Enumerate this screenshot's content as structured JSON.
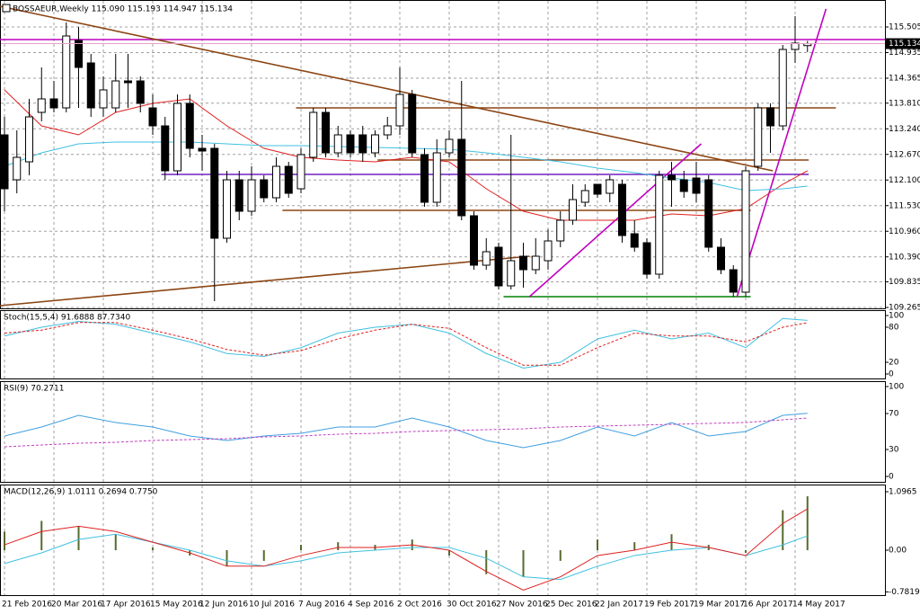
{
  "chart_data": [
    {
      "type": "candlestick",
      "title": "BOSSAEUR,Weekly  115.090 115.193 114.947 115.134",
      "grid": true,
      "categories": [
        "21 Feb 2016",
        null,
        null,
        null,
        "20 Mar 2016",
        null,
        null,
        null,
        "17 Apr 2016",
        null,
        null,
        null,
        "15 May 2016",
        null,
        null,
        null,
        "12 Jun 2016",
        null,
        null,
        null,
        "10 Jul 2016",
        null,
        null,
        null,
        "7 Aug 2016",
        null,
        null,
        null,
        "4 Sep 2016",
        null,
        null,
        null,
        "2 Oct 2016",
        null,
        null,
        null,
        "30 Oct 2016",
        null,
        null,
        null,
        "27 Nov 2016",
        null,
        null,
        null,
        "25 Dec 2016",
        null,
        null,
        null,
        "22 Jan 2017",
        null,
        null,
        null,
        "19 Feb 2017",
        null,
        null,
        null,
        "19 Mar 2017",
        null,
        null,
        null,
        "16 Apr 2017",
        null,
        null,
        null,
        "14 May 2017",
        null
      ],
      "open": [
        113.105,
        112.105,
        112.505,
        113.605,
        113.905,
        113.705,
        115.205,
        114.705,
        113.705,
        113.705,
        114.305,
        114.305,
        113.705,
        113.305,
        112.305,
        113.805,
        112.805,
        112.805,
        110.805,
        112.105,
        111.405,
        112.105,
        111.705,
        112.405,
        111.905,
        112.605,
        113.605,
        112.705,
        113.105,
        113.105,
        112.705,
        113.105,
        113.305,
        114.005,
        112.665,
        111.605,
        112.705,
        113.005,
        111.305,
        110.205,
        110.605,
        109.745,
        110.405,
        110.105,
        110.305,
        110.745,
        111.205,
        111.605,
        112.005,
        111.805,
        112.005,
        110.905,
        110.705,
        110.005,
        112.205,
        112.105,
        112.145,
        112.105,
        110.605,
        110.105,
        109.605,
        112.405,
        113.705,
        113.305,
        115.005,
        115.09
      ],
      "high": [
        113.505,
        113.205,
        113.905,
        114.605,
        114.305,
        115.605,
        115.505,
        114.905,
        114.405,
        114.905,
        114.905,
        114.405,
        114.005,
        113.505,
        114.005,
        114.005,
        113.105,
        112.905,
        112.305,
        112.305,
        112.405,
        112.205,
        112.605,
        112.505,
        112.805,
        113.705,
        113.705,
        113.305,
        113.205,
        113.305,
        113.205,
        113.505,
        114.605,
        114.105,
        112.805,
        113.005,
        113.205,
        114.305,
        111.405,
        110.805,
        110.705,
        113.105,
        110.705,
        110.805,
        111.005,
        111.405,
        112.005,
        112.005,
        112.005,
        112.205,
        112.105,
        111.205,
        110.805,
        112.305,
        112.505,
        112.305,
        112.505,
        112.205,
        110.805,
        110.205,
        112.405,
        113.805,
        113.805,
        115.105,
        115.745,
        115.193
      ],
      "low": [
        111.405,
        111.805,
        112.205,
        113.405,
        113.605,
        113.605,
        113.705,
        113.505,
        113.505,
        113.605,
        113.705,
        113.605,
        113.105,
        112.105,
        112.205,
        112.605,
        112.305,
        109.405,
        110.705,
        111.205,
        111.305,
        111.605,
        111.605,
        111.705,
        111.805,
        112.505,
        112.605,
        112.605,
        112.605,
        112.505,
        112.605,
        113.005,
        113.105,
        112.605,
        111.505,
        111.505,
        112.605,
        111.205,
        110.105,
        110.105,
        109.665,
        109.665,
        109.705,
        110.005,
        110.105,
        110.605,
        111.105,
        111.505,
        111.705,
        111.605,
        110.705,
        110.505,
        109.905,
        109.905,
        111.505,
        111.705,
        111.605,
        110.505,
        110.005,
        109.505,
        109.505,
        112.305,
        112.705,
        113.205,
        114.705,
        114.947
      ],
      "close": [
        111.905,
        112.605,
        113.505,
        113.905,
        113.705,
        115.305,
        114.605,
        113.705,
        114.105,
        114.305,
        114.265,
        113.805,
        113.305,
        112.305,
        113.805,
        112.805,
        112.745,
        110.805,
        112.105,
        111.405,
        112.105,
        111.705,
        112.405,
        111.805,
        112.665,
        113.605,
        112.705,
        113.105,
        112.705,
        112.705,
        113.105,
        113.305,
        114.005,
        112.705,
        111.605,
        112.705,
        113.005,
        111.305,
        110.205,
        110.505,
        109.745,
        110.305,
        110.105,
        110.405,
        110.745,
        111.205,
        111.665,
        111.865,
        111.785,
        112.105,
        110.865,
        110.605,
        110.005,
        112.205,
        112.105,
        111.845,
        111.805,
        110.605,
        110.105,
        109.605,
        112.305,
        113.705,
        113.305,
        115.005,
        115.145,
        115.134
      ],
      "lines": [
        {
          "color": "#e02020",
          "x": [
            0,
            3,
            6,
            9,
            12,
            15,
            18,
            21,
            24,
            27,
            30,
            33,
            36,
            39,
            42,
            45,
            48,
            51,
            54,
            57,
            60,
            63,
            65
          ],
          "values": [
            114.105,
            113.305,
            113.105,
            113.605,
            113.805,
            113.905,
            113.305,
            112.805,
            112.605,
            112.545,
            112.505,
            112.605,
            112.505,
            111.905,
            111.405,
            111.205,
            111.205,
            111.205,
            111.345,
            111.305,
            111.465,
            112.005,
            112.305
          ]
        },
        {
          "color": "#40c0e0",
          "x": [
            0,
            3,
            6,
            9,
            12,
            15,
            18,
            21,
            24,
            27,
            30,
            33,
            36,
            39,
            42,
            45,
            48,
            51,
            54,
            57,
            60,
            63,
            65
          ],
          "values": [
            112.405,
            112.705,
            112.905,
            112.945,
            112.945,
            112.945,
            112.905,
            112.865,
            112.865,
            112.845,
            112.825,
            112.805,
            112.785,
            112.705,
            112.605,
            112.505,
            112.365,
            112.265,
            112.145,
            112.045,
            111.865,
            111.905,
            111.965
          ]
        }
      ],
      "drawings": [
        {
          "color": "#c000c0",
          "x": [
            -0.4,
            71.3
          ],
          "y": [
            115.225,
            115.225
          ]
        },
        {
          "color": "#8b4513",
          "x": [
            23.6,
            67.3
          ],
          "y": [
            113.705,
            113.705
          ]
        },
        {
          "color": "#8b4513",
          "x": [
            30.2,
            65.1
          ],
          "y": [
            112.545,
            112.545
          ]
        },
        {
          "color": "#8b4513",
          "x": [
            22.5,
            60.4
          ],
          "y": [
            111.425,
            111.425
          ]
        },
        {
          "color": "#7020c0",
          "x": [
            12.7,
            65.1
          ],
          "y": [
            112.225,
            112.225
          ]
        },
        {
          "color": "#008000",
          "x": [
            40.4,
            60.4
          ],
          "y": [
            109.505,
            109.505
          ]
        },
        {
          "color": "#8b4513",
          "x": [
            -0.36,
            62.2
          ],
          "y": [
            115.965,
            112.305
          ]
        },
        {
          "color": "#8b4513",
          "x": [
            -0.36,
            42.5
          ],
          "y": [
            109.305,
            110.405
          ]
        },
        {
          "color": "#c000c0",
          "x": [
            42.5,
            56.4
          ],
          "y": [
            109.505,
            112.905
          ]
        },
        {
          "color": "#c000c0",
          "x": [
            59.3,
            66.5
          ],
          "y": [
            109.505,
            115.905
          ]
        }
      ],
      "current_price": {
        "value": 115.134,
        "label": "115.134"
      },
      "ylim": [
        109.245,
        116.105
      ],
      "yticks": [
        115.505,
        114.935,
        114.365,
        {
          "value": 113.81,
          "label": "113.810"
        },
        {
          "value": 113.24,
          "label": "113.240"
        },
        {
          "value": 112.67,
          "label": "112.670"
        },
        {
          "value": 112.1,
          "label": "112.100"
        },
        {
          "value": 111.53,
          "label": "111.530"
        },
        {
          "value": 110.96,
          "label": "110.960"
        },
        {
          "value": 110.39,
          "label": "110.390"
        },
        109.835,
        109.265
      ]
    },
    {
      "type": "line",
      "title": "Stoch(15,5,4) 91.6888 87.7340",
      "x": [
        0,
        3,
        6,
        9,
        12,
        15,
        18,
        21,
        24,
        27,
        30,
        33,
        36,
        39,
        42,
        45,
        48,
        51,
        54,
        57,
        60,
        63,
        65
      ],
      "series": [
        {
          "color": "#40c0e0",
          "dash": false,
          "values": [
            65,
            80,
            90,
            85,
            70,
            55,
            35,
            30,
            45,
            70,
            80,
            85,
            70,
            35,
            10,
            20,
            60,
            75,
            60,
            70,
            45,
            95,
            91.6888
          ]
        },
        {
          "color": "#e02020",
          "dash": true,
          "values": [
            70,
            75,
            88,
            88,
            75,
            60,
            42,
            32,
            40,
            60,
            75,
            85,
            78,
            45,
            15,
            15,
            45,
            70,
            65,
            65,
            55,
            80,
            87.734
          ]
        }
      ],
      "ylim": [
        -7.7,
        109.2
      ],
      "yticks": [
        100,
        80,
        20,
        0
      ]
    },
    {
      "type": "line",
      "title": "RSI(9) 70.2711",
      "x": [
        0,
        3,
        6,
        9,
        12,
        15,
        18,
        21,
        24,
        27,
        30,
        33,
        36,
        39,
        42,
        45,
        48,
        51,
        54,
        57,
        60,
        63,
        65
      ],
      "series": [
        {
          "color": "#40a0e0",
          "dash": false,
          "values": [
            45,
            55,
            68,
            60,
            55,
            45,
            40,
            45,
            48,
            55,
            55,
            65,
            55,
            40,
            32,
            40,
            55,
            45,
            60,
            45,
            50,
            68,
            70.2711
          ]
        },
        {
          "color": "#c040c0",
          "dash": true,
          "values": [
            33,
            35,
            37,
            38,
            40,
            41,
            42,
            44,
            45,
            47,
            48,
            50,
            51,
            52,
            53,
            55,
            56,
            57,
            58,
            59,
            60,
            63,
            65
          ]
        }
      ],
      "ylim": [
        -6,
        106
      ],
      "yticks": [
        100,
        70,
        30,
        0
      ]
    },
    {
      "type": "bar",
      "title": "MACD(12,26,9) 1.0111 0.2694 0.7750",
      "color": "#556b2f",
      "x": [
        0,
        3,
        6,
        9,
        12,
        15,
        18,
        21,
        24,
        27,
        30,
        33,
        36,
        39,
        42,
        45,
        48,
        51,
        54,
        57,
        60,
        63,
        65
      ],
      "values": [
        0.35,
        0.55,
        0.45,
        0.3,
        0.05,
        -0.1,
        -0.3,
        -0.2,
        0.1,
        0.15,
        0.1,
        0.2,
        -0.1,
        -0.45,
        -0.5,
        -0.2,
        0.2,
        0.15,
        0.3,
        0.1,
        -0.05,
        0.75,
        1.0111
      ],
      "series": [
        {
          "color": "#40c0e0",
          "dash": false,
          "values": [
            -0.25,
            -0.05,
            0.2,
            0.3,
            0.15,
            0,
            -0.2,
            -0.3,
            -0.2,
            -0.05,
            0,
            0.05,
            0.05,
            -0.15,
            -0.5,
            -0.55,
            -0.3,
            -0.1,
            0,
            0.05,
            -0.1,
            0.1,
            0.2694
          ]
        },
        {
          "color": "#e02020",
          "dash": false,
          "values": [
            0.1,
            0.35,
            0.45,
            0.35,
            0.15,
            -0.05,
            -0.3,
            -0.3,
            -0.1,
            0.05,
            0.05,
            0.1,
            0,
            -0.4,
            -0.75,
            -0.5,
            -0.1,
            0,
            0.15,
            0.05,
            -0.1,
            0.5,
            0.775
          ]
        }
      ],
      "ylim": [
        -0.843,
        1.2315
      ],
      "yticks": [
        1.0965,
        {
          "value": 0,
          "label": "0.00"
        },
        -0.7819
      ]
    }
  ]
}
